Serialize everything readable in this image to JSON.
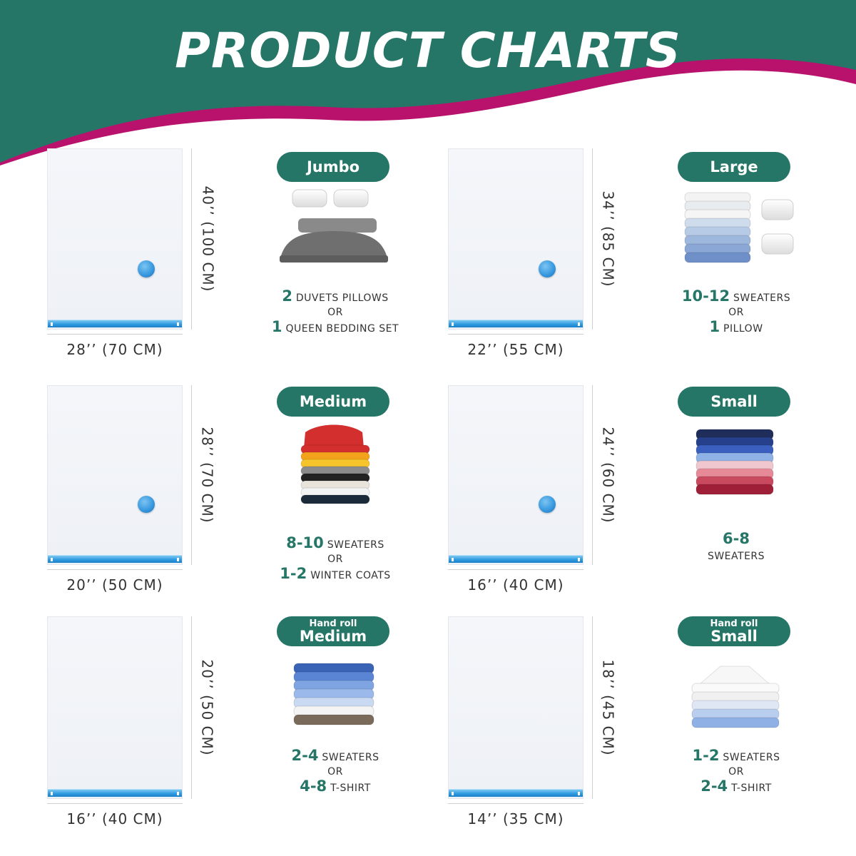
{
  "page": {
    "title": "PRODUCT CHARTS",
    "colors": {
      "header": "#257667",
      "wave": "#b8126c",
      "pill": "#257667",
      "zip": "#2f9be0"
    }
  },
  "products": [
    {
      "label": "Jumbo",
      "sublabel": "",
      "height_text": "40’’ (100 CM)",
      "width_text": "28’’ (70 CM)",
      "has_valve": true,
      "illustration": "bed-with-pillows",
      "capacity": [
        {
          "num": "2",
          "text": "DUVETS PILLOWS"
        },
        {
          "or": "OR"
        },
        {
          "num": "1",
          "text": "QUEEN BEDDING SET"
        }
      ]
    },
    {
      "label": "Large",
      "sublabel": "",
      "height_text": "34’’ (85 CM)",
      "width_text": "22’’ (55 CM)",
      "has_valve": true,
      "illustration": "shirts-and-pillows",
      "capacity": [
        {
          "num": "10-12",
          "text": "SWEATERS"
        },
        {
          "or": "OR"
        },
        {
          "num": "1",
          "text": "PILLOW"
        }
      ]
    },
    {
      "label": "Medium",
      "sublabel": "",
      "height_text": "28’’ (70 CM)",
      "width_text": "20’’ (50 CM)",
      "has_valve": true,
      "illustration": "sweater-stack-colorful",
      "capacity": [
        {
          "num": "8-10",
          "text": "SWEATERS"
        },
        {
          "or": "OR"
        },
        {
          "num": "1-2",
          "text": "WINTER COATS"
        }
      ]
    },
    {
      "label": "Small",
      "sublabel": "",
      "height_text": "24’’ (60 CM)",
      "width_text": "16’’ (40 CM)",
      "has_valve": true,
      "illustration": "sweater-stack-blue-pink",
      "capacity": [
        {
          "num": "6-8",
          "text": ""
        },
        {
          "text": "SWEATERS"
        }
      ]
    },
    {
      "label": "Medium",
      "sublabel": "Hand roll",
      "height_text": "20’’ (50 CM)",
      "width_text": "16’’ (40 CM)",
      "has_valve": false,
      "illustration": "shirt-stack-blue",
      "capacity": [
        {
          "num": "2-4",
          "text": "SWEATERS"
        },
        {
          "or": "OR"
        },
        {
          "num": "4-8",
          "text": "T-SHIRT"
        }
      ]
    },
    {
      "label": "Small",
      "sublabel": "Hand roll",
      "height_text": "18’’ (45 CM)",
      "width_text": "14’’ (35 CM)",
      "has_valve": false,
      "illustration": "shirt-stack-white",
      "capacity": [
        {
          "num": "1-2",
          "text": "SWEATERS"
        },
        {
          "or": "OR"
        },
        {
          "num": "2-4",
          "text": "T-SHIRT"
        }
      ]
    }
  ]
}
